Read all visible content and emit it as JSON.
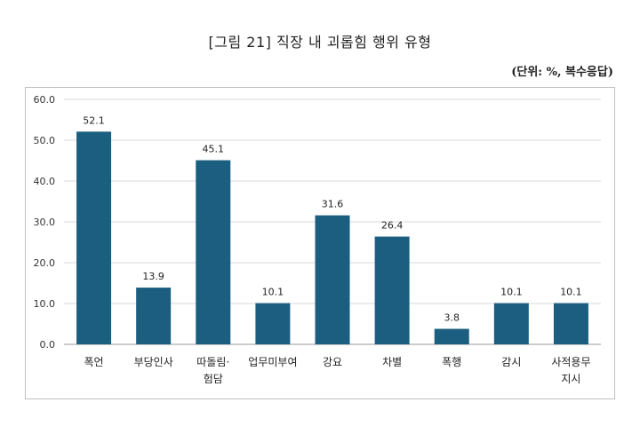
{
  "title": "[그림 21] 직장 내 괴롭힘 행위 유형",
  "unit_note": "(단위: %, 복수응답)",
  "chart_data": {
    "type": "bar",
    "categories": [
      [
        "폭언"
      ],
      [
        "부당인사"
      ],
      [
        "따돌림·",
        "험담"
      ],
      [
        "업무미부여"
      ],
      [
        "강요"
      ],
      [
        "차별"
      ],
      [
        "폭행"
      ],
      [
        "감시"
      ],
      [
        "사적용무",
        "지시"
      ]
    ],
    "values": [
      52.1,
      13.9,
      45.1,
      10.1,
      31.6,
      26.4,
      3.8,
      10.1,
      10.1
    ],
    "data_labels": [
      "52.1",
      "13.9",
      "45.1",
      "10.1",
      "31.6",
      "26.4",
      "3.8",
      "10.1",
      "10.1"
    ],
    "ylim": [
      0,
      60
    ],
    "yticks": [
      "0.0",
      "10.0",
      "20.0",
      "30.0",
      "40.0",
      "50.0",
      "60.0"
    ],
    "grid": true,
    "bar_color": "#1b5e7f",
    "xlabel": "",
    "ylabel": ""
  }
}
